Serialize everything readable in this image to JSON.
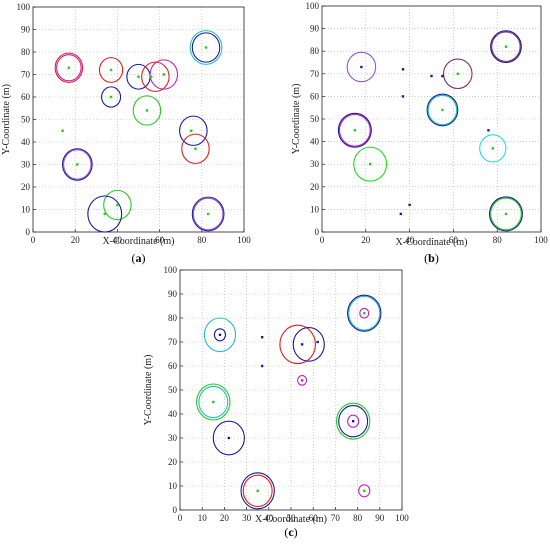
{
  "chart_data": [
    {
      "type": "scatter",
      "panel_label": "a",
      "xlabel": "X-Coordinate (m)",
      "ylabel": "Y-Coordinate (m)",
      "xlim": [
        0,
        100
      ],
      "ylim": [
        0,
        100
      ],
      "xticks": [
        "0",
        "20",
        "40",
        "60",
        "80",
        "100"
      ],
      "yticks": [
        "0",
        "10",
        "20",
        "30",
        "40",
        "50",
        "60",
        "70",
        "80",
        "90",
        "100"
      ],
      "grid": true,
      "points": [
        {
          "x": 17,
          "y": 73,
          "color": "#22cc22"
        },
        {
          "x": 37,
          "y": 72,
          "color": "#22cc22"
        },
        {
          "x": 37,
          "y": 60,
          "color": "#22cc22"
        },
        {
          "x": 54,
          "y": 54,
          "color": "#22cc22"
        },
        {
          "x": 50,
          "y": 69,
          "color": "#22cc22"
        },
        {
          "x": 56,
          "y": 69,
          "color": "#22cc22"
        },
        {
          "x": 62,
          "y": 70,
          "color": "#22cc22"
        },
        {
          "x": 82,
          "y": 82,
          "color": "#22cc22"
        },
        {
          "x": 14,
          "y": 45,
          "color": "#22cc22"
        },
        {
          "x": 75,
          "y": 45,
          "color": "#22cc22"
        },
        {
          "x": 21,
          "y": 30,
          "color": "#22cc22"
        },
        {
          "x": 77,
          "y": 37,
          "color": "#22cc22"
        },
        {
          "x": 34,
          "y": 8,
          "color": "#22cc22"
        },
        {
          "x": 40,
          "y": 12,
          "color": "#22cc22"
        },
        {
          "x": 83,
          "y": 8,
          "color": "#22cc22"
        }
      ],
      "circles": [
        {
          "x": 17,
          "y": 73,
          "r": 6.5,
          "color": "#e02020"
        },
        {
          "x": 17,
          "y": 73,
          "r": 5.8,
          "color": "#c020c0"
        },
        {
          "x": 37,
          "y": 72,
          "r": 5.5,
          "color": "#e02020"
        },
        {
          "x": 37,
          "y": 60,
          "r": 4.5,
          "color": "#1a1aa0"
        },
        {
          "x": 50,
          "y": 69,
          "r": 5.5,
          "color": "#1a1aa0"
        },
        {
          "x": 54,
          "y": 54,
          "r": 6.5,
          "color": "#22cc22"
        },
        {
          "x": 58,
          "y": 69,
          "r": 6.5,
          "color": "#e02020"
        },
        {
          "x": 62,
          "y": 70,
          "r": 6.5,
          "color": "#c020c0"
        },
        {
          "x": 82,
          "y": 82,
          "r": 7.5,
          "color": "#20c0c0"
        },
        {
          "x": 82,
          "y": 82,
          "r": 6.5,
          "color": "#1a1aa0"
        },
        {
          "x": 21,
          "y": 30,
          "r": 7.0,
          "color": "#1a1aa0"
        },
        {
          "x": 21,
          "y": 30,
          "r": 6.5,
          "color": "#9955cc"
        },
        {
          "x": 76,
          "y": 45,
          "r": 6.5,
          "color": "#1a1aa0"
        },
        {
          "x": 77,
          "y": 37,
          "r": 6.5,
          "color": "#e02020"
        },
        {
          "x": 40,
          "y": 12,
          "r": 6.5,
          "color": "#22cc22"
        },
        {
          "x": 34,
          "y": 8,
          "r": 8.0,
          "color": "#1a1aa0"
        },
        {
          "x": 83,
          "y": 8,
          "r": 7.5,
          "color": "#1a1aa0"
        },
        {
          "x": 83,
          "y": 8,
          "r": 7.0,
          "color": "#9955cc"
        }
      ]
    },
    {
      "type": "scatter",
      "panel_label": "b",
      "xlabel": "X-Coordinate (m)",
      "ylabel": "Y-Coordinate (m)",
      "xlim": [
        0,
        100
      ],
      "ylim": [
        0,
        100
      ],
      "xticks": [
        "0",
        "20",
        "40",
        "60",
        "80",
        "100"
      ],
      "yticks": [
        "0",
        "10",
        "20",
        "30",
        "40",
        "50",
        "60",
        "70",
        "80",
        "90",
        "100"
      ],
      "grid": true,
      "points": [
        {
          "x": 18,
          "y": 73,
          "color": "#1a1aa0"
        },
        {
          "x": 37,
          "y": 72,
          "color": "#1a1aa0"
        },
        {
          "x": 37,
          "y": 60,
          "color": "#1a1aa0"
        },
        {
          "x": 50,
          "y": 69,
          "color": "#1a1aa0"
        },
        {
          "x": 55,
          "y": 69,
          "color": "#1a1aa0"
        },
        {
          "x": 55,
          "y": 54,
          "color": "#22cc22"
        },
        {
          "x": 62,
          "y": 70,
          "color": "#22cc22"
        },
        {
          "x": 84,
          "y": 82,
          "color": "#22cc22"
        },
        {
          "x": 15,
          "y": 45,
          "color": "#22cc22"
        },
        {
          "x": 76,
          "y": 45,
          "color": "#1a1aa0"
        },
        {
          "x": 78,
          "y": 37,
          "color": "#22cc22"
        },
        {
          "x": 22,
          "y": 30,
          "color": "#22cc22"
        },
        {
          "x": 36,
          "y": 8,
          "color": "#1a1aa0"
        },
        {
          "x": 40,
          "y": 12,
          "color": "#1a1aa0"
        },
        {
          "x": 84,
          "y": 8,
          "color": "#22cc22"
        }
      ],
      "circles": [
        {
          "x": 18,
          "y": 73,
          "r": 6.5,
          "color": "#9955cc"
        },
        {
          "x": 62,
          "y": 70,
          "r": 6.5,
          "color": "#803060"
        },
        {
          "x": 84,
          "y": 82,
          "r": 7.0,
          "color": "#1a1aa0"
        },
        {
          "x": 84,
          "y": 82,
          "r": 6.5,
          "color": "#803060"
        },
        {
          "x": 55,
          "y": 54,
          "r": 7.0,
          "color": "#1a1aa0"
        },
        {
          "x": 55,
          "y": 54,
          "r": 6.5,
          "color": "#20c0c0"
        },
        {
          "x": 15,
          "y": 45,
          "r": 7.5,
          "color": "#1a1aa0"
        },
        {
          "x": 15,
          "y": 45,
          "r": 7.0,
          "color": "#c020c0"
        },
        {
          "x": 78,
          "y": 37,
          "r": 6.0,
          "color": "#20e0e0"
        },
        {
          "x": 22,
          "y": 30,
          "r": 7.5,
          "color": "#22dd22"
        },
        {
          "x": 84,
          "y": 8,
          "r": 7.5,
          "color": "#1a1aa0"
        },
        {
          "x": 84,
          "y": 8,
          "r": 7.0,
          "color": "#22cc22"
        }
      ]
    },
    {
      "type": "scatter",
      "panel_label": "c",
      "xlabel": "X-Coordinate (m)",
      "ylabel": "Y-Coordinate (m)",
      "xlim": [
        0,
        100
      ],
      "ylim": [
        0,
        100
      ],
      "xticks": [
        "0",
        "10",
        "20",
        "30",
        "40",
        "50",
        "60",
        "70",
        "80",
        "90",
        "100"
      ],
      "yticks": [
        "0",
        "10",
        "20",
        "30",
        "40",
        "50",
        "60",
        "70",
        "80",
        "90",
        "100"
      ],
      "grid": true,
      "points": [
        {
          "x": 18,
          "y": 73,
          "color": "#1a1aa0"
        },
        {
          "x": 37,
          "y": 72,
          "color": "#1a1aa0"
        },
        {
          "x": 37,
          "y": 60,
          "color": "#1a1aa0"
        },
        {
          "x": 55,
          "y": 69,
          "color": "#1a1aa0"
        },
        {
          "x": 62,
          "y": 70,
          "color": "#1a1aa0"
        },
        {
          "x": 55,
          "y": 54,
          "color": "#c020c0"
        },
        {
          "x": 83,
          "y": 82,
          "color": "#22cc22"
        },
        {
          "x": 15,
          "y": 45,
          "color": "#22cc22"
        },
        {
          "x": 78,
          "y": 37,
          "color": "#1a1aa0"
        },
        {
          "x": 22,
          "y": 30,
          "color": "#1a1aa0"
        },
        {
          "x": 35,
          "y": 8,
          "color": "#22cc22"
        },
        {
          "x": 83,
          "y": 8,
          "color": "#22cc22"
        }
      ],
      "circles": [
        {
          "x": 18,
          "y": 73,
          "r": 7.0,
          "color": "#20c0c0"
        },
        {
          "x": 18,
          "y": 73,
          "r": 2.5,
          "color": "#1a1aa0"
        },
        {
          "x": 53,
          "y": 69,
          "r": 8.0,
          "color": "#e02020"
        },
        {
          "x": 58,
          "y": 69,
          "r": 7.0,
          "color": "#1a1aa0"
        },
        {
          "x": 55,
          "y": 54,
          "r": 2.0,
          "color": "#c020c0"
        },
        {
          "x": 83,
          "y": 82,
          "r": 7.5,
          "color": "#1a1aa0"
        },
        {
          "x": 83,
          "y": 82,
          "r": 7.0,
          "color": "#20c0c0"
        },
        {
          "x": 83,
          "y": 82,
          "r": 2.0,
          "color": "#c020c0"
        },
        {
          "x": 15,
          "y": 45,
          "r": 7.5,
          "color": "#22cc22"
        },
        {
          "x": 15,
          "y": 45,
          "r": 6.5,
          "color": "#20c0c0"
        },
        {
          "x": 78,
          "y": 37,
          "r": 7.5,
          "color": "#22cc22"
        },
        {
          "x": 78,
          "y": 37,
          "r": 6.5,
          "color": "#1a1aa0"
        },
        {
          "x": 78,
          "y": 37,
          "r": 2.5,
          "color": "#c020c0"
        },
        {
          "x": 22,
          "y": 30,
          "r": 7.0,
          "color": "#1a1aa0"
        },
        {
          "x": 35,
          "y": 8,
          "r": 7.5,
          "color": "#1a1aa0"
        },
        {
          "x": 35,
          "y": 8,
          "r": 6.5,
          "color": "#e02020"
        },
        {
          "x": 83,
          "y": 8,
          "r": 2.5,
          "color": "#c020c0"
        }
      ]
    }
  ],
  "grid_color": "#b0b0b0",
  "axis_color": "#222222"
}
